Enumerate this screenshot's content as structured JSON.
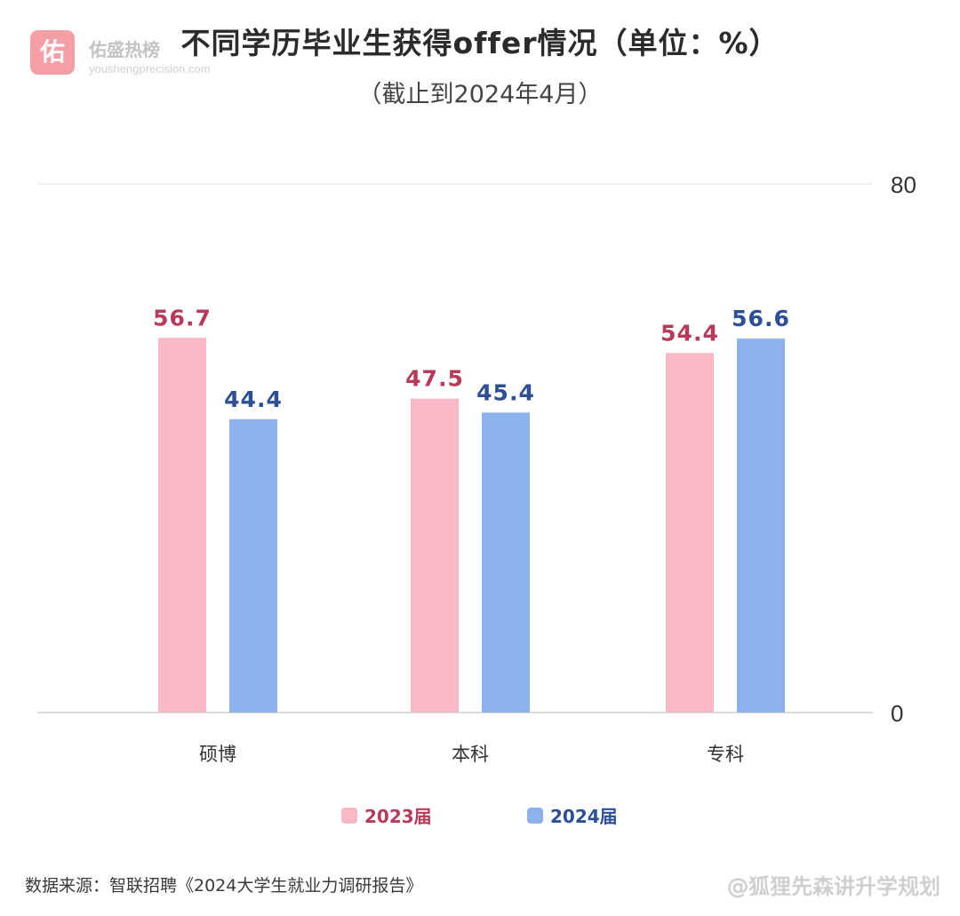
{
  "header": {
    "title": "不同学历毕业生获得offer情况（单位：%）",
    "subtitle": "（截止到2024年4月）"
  },
  "watermark": {
    "logo_char": "佑",
    "name": "佑盛热榜",
    "url": "youshengprecision.com"
  },
  "colors": {
    "series_2023": "#f9b8c6",
    "series_2024": "#8db3ef",
    "label_2023": "#b83a5a",
    "label_2024": "#2c4f96",
    "grid": "#e6e6e6"
  },
  "chart_data": {
    "type": "bar",
    "title": "不同学历毕业生获得offer情况（单位：%）",
    "subtitle": "（截止到2024年4月）",
    "categories": [
      "硕博",
      "本科",
      "专科"
    ],
    "series": [
      {
        "name": "2023届",
        "values": [
          56.7,
          47.5,
          54.4
        ]
      },
      {
        "name": "2024届",
        "values": [
          44.4,
          45.4,
          56.6
        ]
      }
    ],
    "ylim": [
      0,
      80
    ],
    "yticks": [
      0,
      80
    ],
    "y_axis_position": "right",
    "grid": true,
    "legend": "bottom-center",
    "data_labels": true
  },
  "footer": {
    "source": "数据来源：智联招聘《2024大学生就业力调研报告》",
    "author": "@狐狸先森讲升学规划"
  }
}
